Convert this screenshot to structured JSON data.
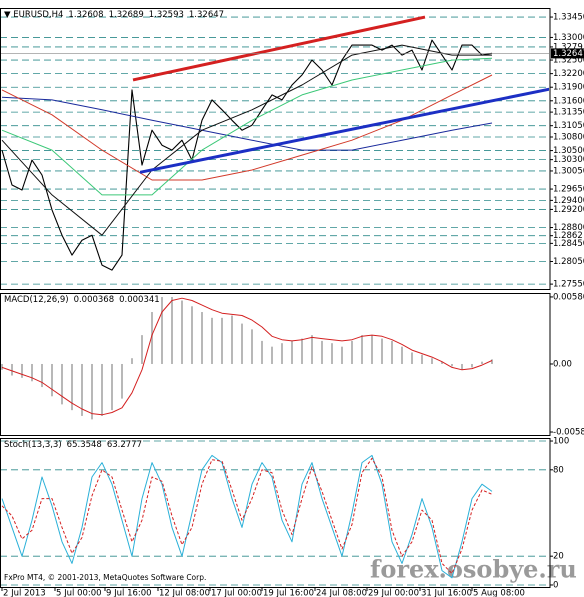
{
  "chart_data": [
    {
      "type": "line",
      "title": "EURUSD,H4",
      "ohlc": [
        1.32608,
        1.32689,
        1.32593,
        1.32647
      ],
      "xlim": [
        -0.2,
        54.8
      ],
      "ylim": [
        1.2742,
        1.3365
      ],
      "grid": true,
      "yticks": [
        {
          "value": 1.3345,
          "label": "1.33450"
        },
        {
          "value": 1.33,
          "label": "1.33000"
        },
        1.3279,
        {
          "value": 1.325,
          "label": "1.32500"
        },
        {
          "value": 1.322,
          "label": "1.32200"
        },
        {
          "value": 1.319,
          "label": "1.31900"
        },
        {
          "value": 1.316,
          "label": "1.31600"
        },
        {
          "value": 1.3135,
          "label": "1.31350"
        },
        {
          "value": 1.3105,
          "label": "1.31050"
        },
        {
          "value": 1.308,
          "label": "1.30800"
        },
        {
          "value": 1.305,
          "label": "1.30500"
        },
        {
          "value": 1.303,
          "label": "1.30300"
        },
        {
          "value": 1.3005,
          "label": "1.30050"
        },
        {
          "value": 1.2965,
          "label": "1.29650"
        },
        {
          "value": 1.294,
          "label": "1.29400"
        },
        {
          "value": 1.292,
          "label": "1.29200"
        },
        {
          "value": 1.288,
          "label": "1.28800"
        },
        1.2862,
        {
          "value": 1.2845,
          "label": "1.28450"
        },
        {
          "value": 1.2805,
          "label": "1.28050"
        },
        {
          "value": 1.2755,
          "label": "1.27550"
        }
      ],
      "last_price": 1.32647,
      "x": [
        0,
        1,
        2,
        3,
        4,
        5,
        6,
        7,
        8,
        9,
        10,
        11,
        12,
        13,
        14,
        15,
        16,
        17,
        18,
        19,
        20,
        21,
        22,
        23,
        24,
        25,
        26,
        27,
        28,
        29,
        30,
        31,
        32,
        33,
        34,
        35,
        36,
        37,
        38,
        39,
        40,
        41,
        42,
        43,
        44,
        45,
        46,
        47,
        48,
        49
      ],
      "series": [
        {
          "color": "#000000",
          "values": [
            1.3051,
            1.2974,
            1.2963,
            1.3029,
            1.2996,
            1.2919,
            1.2863,
            1.2819,
            1.2852,
            1.2863,
            1.2797,
            1.2786,
            1.2819,
            1.3184,
            1.3018,
            1.3095,
            1.3062,
            1.3051,
            1.3073,
            1.3029,
            1.3117,
            1.3162,
            1.314,
            1.3117,
            1.3095,
            1.3106,
            1.314,
            1.3173,
            1.3162,
            1.3195,
            1.3217,
            1.325,
            1.3228,
            1.3195,
            1.325,
            1.3283,
            1.3283,
            1.3283,
            1.3272,
            1.3283,
            1.3261,
            1.3272,
            1.3228,
            1.3294,
            1.3261,
            1.3228,
            1.3283,
            1.3283,
            1.3261,
            1.3265
          ]
        },
        {
          "color": "#1a2a9c",
          "x": [
            0,
            5,
            10,
            15,
            20,
            25,
            30,
            35,
            40,
            45,
            49
          ],
          "values": [
            1.3168,
            1.3162,
            1.314,
            1.3117,
            1.3095,
            1.3073,
            1.3051,
            1.3051,
            1.3073,
            1.3095,
            1.3111
          ]
        },
        {
          "color": "#d23a2a",
          "x": [
            0,
            5,
            10,
            15,
            20,
            25,
            30,
            35,
            40,
            45,
            49
          ],
          "values": [
            1.3184,
            1.3129,
            1.3051,
            1.2985,
            1.2985,
            1.3007,
            1.304,
            1.3073,
            1.3117,
            1.3173,
            1.3217
          ]
        },
        {
          "color": "#3cc878",
          "x": [
            0,
            5,
            10,
            15,
            20,
            25,
            30,
            35,
            40,
            45,
            49
          ],
          "values": [
            1.3095,
            1.3051,
            1.2952,
            1.2952,
            1.3051,
            1.3117,
            1.3173,
            1.3206,
            1.3228,
            1.325,
            1.3254
          ]
        },
        {
          "color": "#111111",
          "x": [
            0,
            5,
            10,
            15,
            20,
            25,
            30,
            35,
            40,
            45,
            49
          ],
          "values": [
            1.3073,
            1.2952,
            1.2863,
            1.3007,
            1.3095,
            1.314,
            1.3195,
            1.3261,
            1.3283,
            1.3261,
            1.3261
          ]
        }
      ],
      "trendlines": [
        {
          "color": "#d42020",
          "x": [
            13.1,
            42.3
          ],
          "values": [
            1.3206,
            1.3345
          ]
        },
        {
          "color": "#1c2fc4",
          "x": [
            13.8,
            54.8
          ],
          "values": [
            1.3002,
            1.3186
          ]
        }
      ]
    },
    {
      "type": "bar",
      "title": "MACD(12,26,9)",
      "indicator_values": [
        0.000368,
        0.000341
      ],
      "xlim": [
        -0.2,
        54.8
      ],
      "ylim": [
        -0.00624,
        0.00615
      ],
      "grid": false,
      "yticks": [
        0.005808,
        {
          "value": 0,
          "label": "0.00"
        },
        -0.005895
      ],
      "x": [
        0,
        1,
        2,
        3,
        4,
        5,
        6,
        7,
        8,
        9,
        10,
        11,
        12,
        13,
        14,
        15,
        16,
        17,
        18,
        19,
        20,
        21,
        22,
        23,
        24,
        25,
        26,
        27,
        28,
        29,
        30,
        31,
        32,
        33,
        34,
        35,
        36,
        37,
        38,
        39,
        40,
        41,
        42,
        43,
        44,
        45,
        46,
        47,
        48,
        49
      ],
      "series": [
        {
          "style": "bar",
          "color": "#b8b8b8",
          "values": [
            -0.0005,
            -0.001,
            -0.0012,
            -0.0015,
            -0.002,
            -0.0028,
            -0.0035,
            -0.004,
            -0.0045,
            -0.0048,
            -0.0045,
            -0.004,
            -0.003,
            0.0005,
            0.0025,
            0.0045,
            0.0058,
            0.0058,
            0.0055,
            0.005,
            0.0045,
            0.004,
            0.004,
            0.0042,
            0.0035,
            0.003,
            0.002,
            0.0015,
            0.0018,
            0.002,
            0.0022,
            0.0025,
            0.002,
            0.0018,
            0.0015,
            0.002,
            0.0025,
            0.0025,
            0.0022,
            0.002,
            0.0015,
            0.001,
            0.0008,
            0.0005,
            0.0002,
            -0.0002,
            -0.0005,
            -0.0003,
            0.0002,
            0.0004
          ]
        },
        {
          "style": "line",
          "color": "#d42020",
          "values": [
            -0.0003,
            -0.0006,
            -0.0009,
            -0.0012,
            -0.0016,
            -0.0022,
            -0.0028,
            -0.0034,
            -0.0039,
            -0.0043,
            -0.0044,
            -0.0042,
            -0.0038,
            -0.0025,
            -0.0005,
            0.0025,
            0.0045,
            0.0055,
            0.0057,
            0.0055,
            0.0051,
            0.0047,
            0.0044,
            0.0043,
            0.0042,
            0.0038,
            0.0032,
            0.0024,
            0.0021,
            0.002,
            0.0021,
            0.0023,
            0.0022,
            0.0021,
            0.002,
            0.0021,
            0.0024,
            0.0025,
            0.0024,
            0.0021,
            0.0017,
            0.0012,
            0.0009,
            0.0006,
            0.0002,
            -0.0003,
            -0.0005,
            -0.0004,
            -0.0001,
            0.0003
          ]
        }
      ]
    },
    {
      "type": "line",
      "title": "Stoch(13,3,3)",
      "indicator_values": [
        65.3548,
        63.2777
      ],
      "xlim": [
        -0.2,
        54.8
      ],
      "ylim": [
        -2.1,
        102.1
      ],
      "grid": true,
      "yticks": [
        100,
        80,
        20,
        0
      ],
      "xticks": [
        {
          "value": 0,
          "label": "2 Jul 2013"
        },
        {
          "value": 5.3,
          "label": "5 Jul 00:00"
        },
        {
          "value": 10.3,
          "label": "9 Jul 16:00"
        },
        {
          "value": 15.6,
          "label": "12 Jul 08:00"
        },
        {
          "value": 20.8,
          "label": "17 Jul 00:00"
        },
        {
          "value": 26,
          "label": "19 Jul 16:00"
        },
        {
          "value": 31.3,
          "label": "24 Jul 08:00"
        },
        {
          "value": 36.5,
          "label": "29 Jul 00:00"
        },
        {
          "value": 41.8,
          "label": "31 Jul 16:00"
        },
        {
          "value": 47,
          "label": "5 Aug 08:00"
        }
      ],
      "x": [
        0,
        1,
        2,
        3,
        4,
        5,
        6,
        7,
        8,
        9,
        10,
        11,
        12,
        13,
        14,
        15,
        16,
        17,
        18,
        19,
        20,
        21,
        22,
        23,
        24,
        25,
        26,
        27,
        28,
        29,
        30,
        31,
        32,
        33,
        34,
        35,
        36,
        37,
        38,
        39,
        40,
        41,
        42,
        43,
        44,
        45,
        46,
        47,
        48,
        49
      ],
      "series": [
        {
          "style": "line",
          "color": "#2ab0d8",
          "values": [
            60,
            40,
            20,
            45,
            75,
            55,
            30,
            15,
            40,
            75,
            85,
            70,
            45,
            20,
            60,
            85,
            70,
            40,
            20,
            50,
            80,
            90,
            85,
            60,
            40,
            70,
            85,
            75,
            45,
            30,
            70,
            85,
            60,
            40,
            20,
            50,
            85,
            90,
            70,
            30,
            15,
            35,
            60,
            40,
            10,
            5,
            30,
            60,
            70,
            65
          ]
        },
        {
          "style": "dashed",
          "color": "#d42020",
          "values": [
            55,
            48,
            32,
            38,
            60,
            60,
            40,
            22,
            33,
            62,
            80,
            75,
            52,
            30,
            45,
            75,
            72,
            48,
            28,
            40,
            70,
            87,
            86,
            66,
            45,
            60,
            80,
            78,
            52,
            35,
            60,
            82,
            65,
            45,
            25,
            42,
            78,
            88,
            75,
            38,
            20,
            30,
            52,
            45,
            15,
            8,
            25,
            52,
            66,
            63
          ]
        }
      ]
    }
  ],
  "footer": "FxPro MT4, © 2001-2013, MetaQuotes Software Corp.",
  "watermark": "forex.osobye.ru"
}
